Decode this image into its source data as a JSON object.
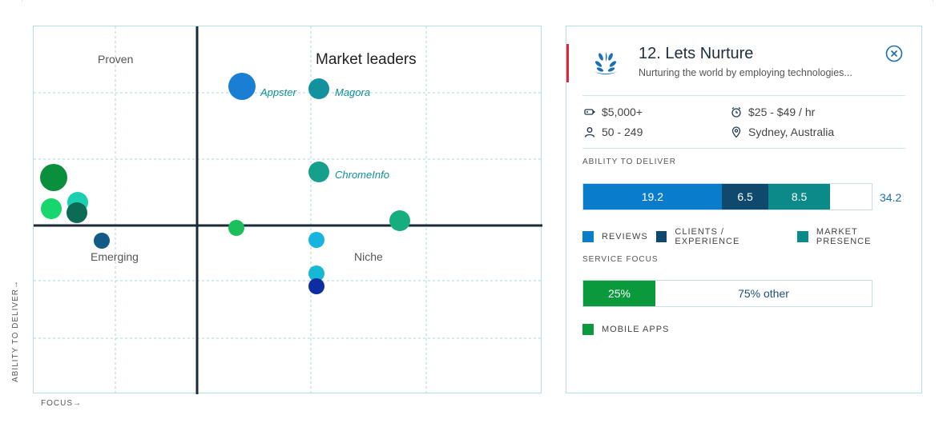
{
  "matrix": {
    "quadrants": {
      "proven": "Proven",
      "leaders": "Market leaders",
      "emerging": "Emerging",
      "niche": "Niche"
    },
    "axis_y": "ABILITY TO DELIVER→",
    "axis_x": "FOCUS→",
    "bubbles": [
      {
        "name": "Appster",
        "color": "#1a7fd4",
        "size": "large",
        "labeled": true
      },
      {
        "name": "Magora",
        "color": "#11929e",
        "size": "medium",
        "labeled": true
      },
      {
        "name": "ChromeInfo",
        "color": "#14a08a",
        "size": "medium",
        "labeled": true
      },
      {
        "name": "",
        "color": "#0a8f3c",
        "size": "large",
        "labeled": false
      },
      {
        "name": "",
        "color": "#1ccfb0",
        "size": "medium",
        "labeled": false
      },
      {
        "name": "",
        "color": "#18d66e",
        "size": "medium",
        "labeled": false
      },
      {
        "name": "",
        "color": "#0b6b55",
        "size": "medium",
        "labeled": false
      },
      {
        "name": "",
        "color": "#1cc05a",
        "size": "small",
        "labeled": false
      },
      {
        "name": "",
        "color": "#16ae7e",
        "size": "medium",
        "labeled": false
      },
      {
        "name": "",
        "color": "#135b86",
        "size": "small",
        "labeled": false
      },
      {
        "name": "",
        "color": "#16b4df",
        "size": "small",
        "labeled": false
      },
      {
        "name": "",
        "color": "#17b8d4",
        "size": "small",
        "labeled": false
      },
      {
        "name": "",
        "color": "#0d2ea0",
        "size": "small",
        "labeled": false
      }
    ]
  },
  "card": {
    "title": "12. Lets Nurture",
    "tagline": "Nurturing the world by employing technologies...",
    "min_project": "$5,000+",
    "hourly_rate": "$25 - $49 / hr",
    "employees": "50 - 249",
    "location": "Sydney, Australia",
    "ability_title": "ABILITY TO DELIVER",
    "ability": {
      "segments": [
        {
          "label": "19.2",
          "value": 19.2,
          "color": "#0a7ccc"
        },
        {
          "label": "6.5",
          "value": 6.5,
          "color": "#0f4a6e"
        },
        {
          "label": "8.5",
          "value": 8.5,
          "color": "#0c8a8a"
        }
      ],
      "total": "34.2",
      "scale_max": 40
    },
    "ability_legend": [
      {
        "label": "REVIEWS",
        "color": "#0a7ccc"
      },
      {
        "label": "CLIENTS / EXPERIENCE",
        "color": "#0f4a6e"
      },
      {
        "label": "MARKET PRESENCE",
        "color": "#0c8a8a"
      }
    ],
    "focus_title": "SERVICE FOCUS",
    "focus": {
      "primary_label": "25%",
      "primary_value": 25,
      "primary_color": "#0a9a3c",
      "other_label": "75% other"
    },
    "focus_legend": {
      "label": "MOBILE APPS",
      "color": "#0a9a3c"
    }
  }
}
